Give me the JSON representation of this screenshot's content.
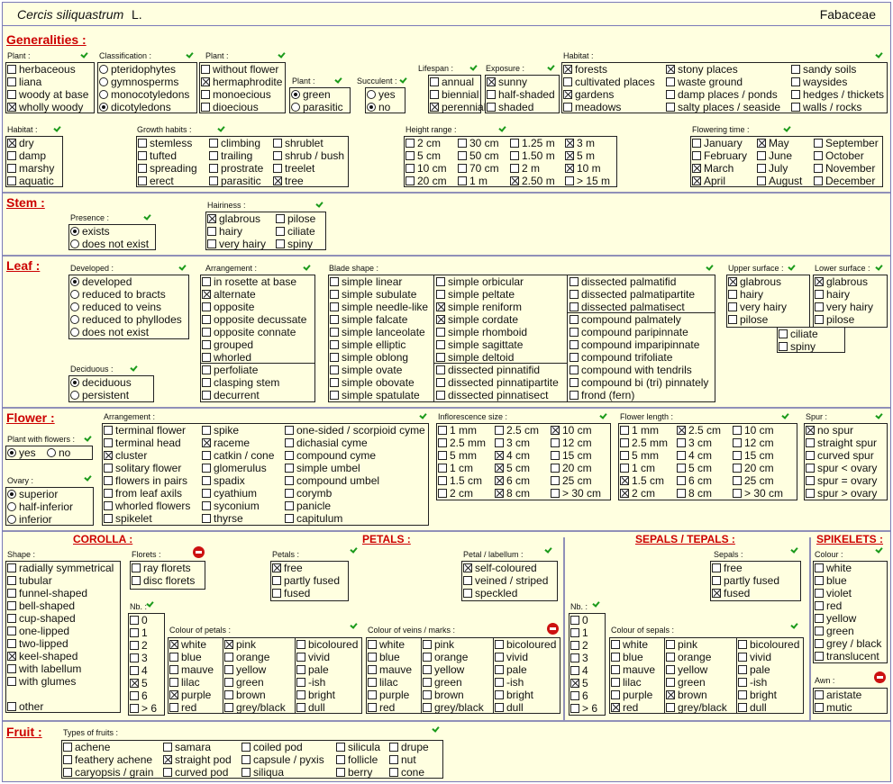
{
  "header": {
    "species": "Cercis siliquastrum",
    "author": "L.",
    "family": "Fabaceae"
  },
  "sections": {
    "generalities": "Generalities :",
    "stem": "Stem :",
    "leaf": "Leaf :",
    "flower": "Flower :",
    "fruit": "Fruit :",
    "corolla": "COROLLA :",
    "petals": "PETALS :",
    "sepals": "SEPALS / TEPALS :",
    "spikelets": "SPIKELETS :"
  },
  "labels": {
    "plant1": "Plant :",
    "classification": "Classification :",
    "plant2": "Plant :",
    "plant3": "Plant :",
    "succulent": "Succulent :",
    "lifespan": "Lifespan :",
    "exposure": "Exposure :",
    "habitat1": "Habitat :",
    "habitat2": "Habitat :",
    "growth": "Growth habits :",
    "height": "Height range :",
    "flowering": "Flowering time :",
    "presence": "Presence :",
    "hairiness": "Hairiness :",
    "developed": "Developed :",
    "arrangement": "Arrangement :",
    "blade": "Blade shape :",
    "upper": "Upper surface :",
    "lower": "Lower surface :",
    "deciduous": "Deciduous :",
    "with_flowers": "Plant with flowers :",
    "f_arr": "Arrangement :",
    "inflo": "Inflorescence size :",
    "flen": "Flower length :",
    "spur": "Spur :",
    "ovary": "Ovary :",
    "shape": "Shape :",
    "florets": "Florets :",
    "petals": "Petals :",
    "petal_lab": "Petal / labellum :",
    "nb1": "Nb. :",
    "col_petals": "Colour of petals :",
    "col_veins": "Colour of veins / marks :",
    "sepals": "Sepals :",
    "nb2": "Nb. :",
    "col_sepals": "Colour of sepals :",
    "colour": "Colour :",
    "awn": "Awn :",
    "fruit_types": "Types of fruits :"
  },
  "groups": {
    "plant1": [
      [
        "herbaceous",
        0
      ],
      [
        "liana",
        0
      ],
      [
        "woody at base",
        0
      ],
      [
        "wholly woody",
        1
      ]
    ],
    "classification": [
      [
        "pteridophytes",
        0
      ],
      [
        "gymnosperms",
        0
      ],
      [
        "monocotyledons",
        0
      ],
      [
        "dicotyledons",
        1
      ]
    ],
    "plant2": [
      [
        "without flower",
        0
      ],
      [
        "hermaphrodite",
        1
      ],
      [
        "monoecious",
        0
      ],
      [
        "dioecious",
        0
      ]
    ],
    "plant3": [
      [
        "green",
        1
      ],
      [
        "parasitic",
        0
      ]
    ],
    "succulent": [
      [
        "yes",
        0
      ],
      [
        "no",
        1
      ]
    ],
    "lifespan": [
      [
        "annual",
        0
      ],
      [
        "biennial",
        0
      ],
      [
        "perennial",
        1
      ]
    ],
    "exposure": [
      [
        "sunny",
        1
      ],
      [
        "half-shaded",
        0
      ],
      [
        "shaded",
        0
      ]
    ],
    "habitat1a": [
      [
        "forests",
        1
      ],
      [
        "cultivated places",
        0
      ],
      [
        "gardens",
        1
      ],
      [
        "meadows",
        0
      ]
    ],
    "habitat1b": [
      [
        "stony places",
        1
      ],
      [
        "waste ground",
        0
      ],
      [
        "damp places / ponds",
        0
      ],
      [
        "salty places / seaside",
        0
      ]
    ],
    "habitat1c": [
      [
        "sandy soils",
        0
      ],
      [
        "waysides",
        0
      ],
      [
        "hedges / thickets",
        0
      ],
      [
        "walls / rocks",
        0
      ]
    ],
    "habitat2": [
      [
        "dry",
        1
      ],
      [
        "damp",
        0
      ],
      [
        "marshy",
        0
      ],
      [
        "aquatic",
        0
      ]
    ],
    "growth_a": [
      [
        "stemless",
        0
      ],
      [
        "tufted",
        0
      ],
      [
        "spreading",
        0
      ],
      [
        "erect",
        0
      ]
    ],
    "growth_b": [
      [
        "climbing",
        0
      ],
      [
        "trailing",
        0
      ],
      [
        "prostrate",
        0
      ],
      [
        "parasitic",
        0
      ]
    ],
    "growth_c": [
      [
        "shrublet",
        0
      ],
      [
        "shrub / bush",
        0
      ],
      [
        "treelet",
        0
      ],
      [
        "tree",
        1
      ]
    ],
    "height_a": [
      [
        "2 cm",
        0
      ],
      [
        "5 cm",
        0
      ],
      [
        "10 cm",
        0
      ],
      [
        "20 cm",
        0
      ]
    ],
    "height_b": [
      [
        "30 cm",
        0
      ],
      [
        "50 cm",
        0
      ],
      [
        "70 cm",
        0
      ],
      [
        "1 m",
        0
      ]
    ],
    "height_c": [
      [
        "1.25 m",
        0
      ],
      [
        "1.50 m",
        0
      ],
      [
        "2 m",
        0
      ],
      [
        "2.50 m",
        1
      ]
    ],
    "height_d": [
      [
        "3 m",
        1
      ],
      [
        "5 m",
        1
      ],
      [
        "10 m",
        1
      ],
      [
        "> 15 m",
        0
      ]
    ],
    "month_a": [
      [
        "January",
        0
      ],
      [
        "February",
        0
      ],
      [
        "March",
        1
      ],
      [
        "April",
        1
      ]
    ],
    "month_b": [
      [
        "May",
        1
      ],
      [
        "June",
        0
      ],
      [
        "July",
        0
      ],
      [
        "August",
        0
      ]
    ],
    "month_c": [
      [
        "September",
        0
      ],
      [
        "October",
        0
      ],
      [
        "November",
        0
      ],
      [
        "December",
        0
      ]
    ],
    "presence": [
      [
        "exists",
        1
      ],
      [
        "does not exist",
        0
      ]
    ],
    "hair_a": [
      [
        "glabrous",
        1
      ],
      [
        "hairy",
        0
      ],
      [
        "very hairy",
        0
      ]
    ],
    "hair_b": [
      [
        "pilose",
        0
      ],
      [
        "ciliate",
        0
      ],
      [
        "spiny",
        0
      ]
    ],
    "developed": [
      [
        "developed",
        1
      ],
      [
        "reduced to bracts",
        0
      ],
      [
        "reduced to veins",
        0
      ],
      [
        "reduced to phyllodes",
        0
      ],
      [
        "does not exist",
        0
      ]
    ],
    "deciduous": [
      [
        "deciduous",
        1
      ],
      [
        "persistent",
        0
      ]
    ],
    "arr_a": [
      [
        "in rosette at base",
        0
      ],
      [
        "alternate",
        1
      ],
      [
        "opposite",
        0
      ],
      [
        "opposite decussate",
        0
      ],
      [
        "opposite connate",
        0
      ],
      [
        "grouped",
        0
      ],
      [
        "whorled",
        0
      ]
    ],
    "arr_b": [
      [
        "perfoliate",
        0
      ],
      [
        "clasping stem",
        0
      ],
      [
        "decurrent",
        0
      ]
    ],
    "blade_a": [
      [
        "simple linear",
        0
      ],
      [
        "simple subulate",
        0
      ],
      [
        "simple needle-like",
        0
      ],
      [
        "simple falcate",
        0
      ],
      [
        "simple lanceolate",
        0
      ],
      [
        "simple elliptic",
        0
      ],
      [
        "simple oblong",
        0
      ],
      [
        "simple ovate",
        0
      ],
      [
        "simple obovate",
        0
      ],
      [
        "simple spatulate",
        0
      ]
    ],
    "blade_b": [
      [
        "simple orbicular",
        0
      ],
      [
        "simple peltate",
        0
      ],
      [
        "simple reniform",
        1
      ],
      [
        "simple cordate",
        1
      ],
      [
        "simple rhomboid",
        0
      ],
      [
        "simple sagittate",
        0
      ],
      [
        "simple deltoid",
        0
      ]
    ],
    "blade_b2": [
      [
        "dissected pinnatifid",
        0
      ],
      [
        "dissected pinnatipartite",
        0
      ],
      [
        "dissected pinnatisect",
        0
      ]
    ],
    "blade_c": [
      [
        "dissected palmatifid",
        0
      ],
      [
        "dissected palmatipartite",
        0
      ],
      [
        "dissected palmatisect",
        0
      ]
    ],
    "blade_c2": [
      [
        "compound palmately",
        0
      ],
      [
        "compound paripinnate",
        0
      ],
      [
        "compound imparipinnate",
        0
      ],
      [
        "compound trifoliate",
        0
      ],
      [
        "compound with tendrils",
        0
      ],
      [
        "compound bi (tri) pinnately",
        0
      ],
      [
        "frond  (fern)",
        0
      ]
    ],
    "upper": [
      [
        "glabrous",
        1
      ],
      [
        "hairy",
        0
      ],
      [
        "very hairy",
        0
      ],
      [
        "pilose",
        0
      ]
    ],
    "lower": [
      [
        "glabrous",
        1
      ],
      [
        "hairy",
        0
      ],
      [
        "very hairy",
        0
      ],
      [
        "pilose",
        0
      ]
    ],
    "surf_extra": [
      [
        "ciliate",
        0
      ],
      [
        "spiny",
        0
      ]
    ],
    "with_flowers": [
      [
        "yes",
        1
      ],
      [
        "no",
        0
      ]
    ],
    "ovary": [
      [
        "superior",
        1
      ],
      [
        "half-inferior",
        0
      ],
      [
        "inferior",
        0
      ]
    ],
    "farr_a": [
      [
        "terminal flower",
        0
      ],
      [
        "terminal head",
        0
      ],
      [
        "cluster",
        1
      ],
      [
        "solitary flower",
        0
      ],
      [
        "flowers in pairs",
        0
      ],
      [
        "from leaf axils",
        0
      ],
      [
        "whorled flowers",
        0
      ],
      [
        "spikelet",
        0
      ]
    ],
    "farr_b": [
      [
        "spike",
        0
      ],
      [
        "raceme",
        1
      ],
      [
        "catkin / cone",
        0
      ],
      [
        "glomerulus",
        0
      ],
      [
        "spadix",
        0
      ],
      [
        "cyathium",
        0
      ],
      [
        "syconium",
        0
      ],
      [
        "thyrse",
        0
      ]
    ],
    "farr_c": [
      [
        "one-sided / scorpioid cyme",
        0
      ],
      [
        "dichasial cyme",
        0
      ],
      [
        "compound cyme",
        0
      ],
      [
        "simple umbel",
        0
      ],
      [
        "compound umbel",
        0
      ],
      [
        "corymb",
        0
      ],
      [
        "panicle",
        0
      ],
      [
        "capitulum",
        0
      ]
    ],
    "inflo_a": [
      [
        "1 mm",
        0
      ],
      [
        "2.5 mm",
        0
      ],
      [
        "5 mm",
        0
      ],
      [
        "1 cm",
        0
      ],
      [
        "1.5 cm",
        0
      ],
      [
        "2 cm",
        0
      ]
    ],
    "inflo_b": [
      [
        "2.5 cm",
        0
      ],
      [
        "3 cm",
        0
      ],
      [
        "4 cm",
        1
      ],
      [
        "5 cm",
        1
      ],
      [
        "6 cm",
        1
      ],
      [
        "8 cm",
        1
      ]
    ],
    "inflo_c": [
      [
        "10 cm",
        1
      ],
      [
        "12 cm",
        0
      ],
      [
        "15 cm",
        0
      ],
      [
        "20 cm",
        0
      ],
      [
        "25 cm",
        0
      ],
      [
        "> 30 cm",
        0
      ]
    ],
    "flen_a": [
      [
        "1 mm",
        0
      ],
      [
        "2.5 mm",
        0
      ],
      [
        "5 mm",
        0
      ],
      [
        "1 cm",
        0
      ],
      [
        "1.5 cm",
        1
      ],
      [
        "2 cm",
        1
      ]
    ],
    "flen_b": [
      [
        "2.5 cm",
        1
      ],
      [
        "3 cm",
        0
      ],
      [
        "4 cm",
        0
      ],
      [
        "5 cm",
        0
      ],
      [
        "6 cm",
        0
      ],
      [
        "8 cm",
        0
      ]
    ],
    "flen_c": [
      [
        "10 cm",
        0
      ],
      [
        "12 cm",
        0
      ],
      [
        "15 cm",
        0
      ],
      [
        "20 cm",
        0
      ],
      [
        "25 cm",
        0
      ],
      [
        "> 30 cm",
        0
      ]
    ],
    "spur": [
      [
        "no spur",
        1
      ],
      [
        "straight spur",
        0
      ],
      [
        "curved spur",
        0
      ],
      [
        "spur < ovary",
        0
      ],
      [
        "spur = ovary",
        0
      ],
      [
        "spur > ovary",
        0
      ]
    ],
    "shape": [
      [
        "radially symmetrical",
        0
      ],
      [
        "tubular",
        0
      ],
      [
        "funnel-shaped",
        0
      ],
      [
        "bell-shaped",
        0
      ],
      [
        "cup-shaped",
        0
      ],
      [
        "one-lipped",
        0
      ],
      [
        "two-lipped",
        0
      ],
      [
        "keel-shaped",
        1
      ],
      [
        "with labellum",
        0
      ],
      [
        "with glumes",
        0
      ]
    ],
    "shape_other": [
      [
        "other",
        0
      ]
    ],
    "florets": [
      [
        "ray florets",
        0
      ],
      [
        "disc florets",
        0
      ]
    ],
    "petals": [
      [
        "free",
        1
      ],
      [
        "partly fused",
        0
      ],
      [
        "fused",
        0
      ]
    ],
    "petal_lab": [
      [
        "self-coloured",
        1
      ],
      [
        "veined / striped",
        0
      ],
      [
        "speckled",
        0
      ]
    ],
    "nb1": [
      [
        "0",
        0
      ],
      [
        "1",
        0
      ],
      [
        "2",
        0
      ],
      [
        "3",
        0
      ],
      [
        "4",
        0
      ],
      [
        "5",
        1
      ],
      [
        "6",
        0
      ],
      [
        "> 6",
        0
      ]
    ],
    "cp_a": [
      [
        "white",
        1
      ],
      [
        "blue",
        0
      ],
      [
        "mauve",
        0
      ],
      [
        "lilac",
        0
      ],
      [
        "purple",
        1
      ],
      [
        "red",
        0
      ]
    ],
    "cp_b": [
      [
        "pink",
        1
      ],
      [
        "orange",
        0
      ],
      [
        "yellow",
        0
      ],
      [
        "green",
        0
      ],
      [
        "brown",
        0
      ],
      [
        "grey/black",
        0
      ]
    ],
    "cp_c": [
      [
        "bicoloured",
        0
      ],
      [
        "vivid",
        0
      ],
      [
        "pale",
        0
      ],
      [
        "-ish",
        0
      ],
      [
        "bright",
        0
      ],
      [
        "dull",
        0
      ]
    ],
    "cv_a": [
      [
        "white",
        0
      ],
      [
        "blue",
        0
      ],
      [
        "mauve",
        0
      ],
      [
        "lilac",
        0
      ],
      [
        "purple",
        0
      ],
      [
        "red",
        0
      ]
    ],
    "cv_b": [
      [
        "pink",
        0
      ],
      [
        "orange",
        0
      ],
      [
        "yellow",
        0
      ],
      [
        "green",
        0
      ],
      [
        "brown",
        0
      ],
      [
        "grey/black",
        0
      ]
    ],
    "cv_c": [
      [
        "bicoloured",
        0
      ],
      [
        "vivid",
        0
      ],
      [
        "pale",
        0
      ],
      [
        "-ish",
        0
      ],
      [
        "bright",
        0
      ],
      [
        "dull",
        0
      ]
    ],
    "nb2": [
      [
        "0",
        0
      ],
      [
        "1",
        0
      ],
      [
        "2",
        0
      ],
      [
        "3",
        0
      ],
      [
        "4",
        0
      ],
      [
        "5",
        1
      ],
      [
        "6",
        0
      ],
      [
        "> 6",
        0
      ]
    ],
    "sepals": [
      [
        "free",
        0
      ],
      [
        "partly fused",
        0
      ],
      [
        "fused",
        1
      ]
    ],
    "cs_a": [
      [
        "white",
        0
      ],
      [
        "blue",
        0
      ],
      [
        "mauve",
        0
      ],
      [
        "lilac",
        0
      ],
      [
        "purple",
        0
      ],
      [
        "red",
        1
      ]
    ],
    "cs_b": [
      [
        "pink",
        0
      ],
      [
        "orange",
        0
      ],
      [
        "yellow",
        0
      ],
      [
        "green",
        0
      ],
      [
        "brown",
        1
      ],
      [
        "grey/black",
        0
      ]
    ],
    "cs_c": [
      [
        "bicoloured",
        0
      ],
      [
        "vivid",
        0
      ],
      [
        "pale",
        0
      ],
      [
        "-ish",
        0
      ],
      [
        "bright",
        0
      ],
      [
        "dull",
        0
      ]
    ],
    "colour": [
      [
        "white",
        0
      ],
      [
        "blue",
        0
      ],
      [
        "violet",
        0
      ],
      [
        "red",
        0
      ],
      [
        "yellow",
        0
      ],
      [
        "green",
        0
      ],
      [
        "grey / black",
        0
      ],
      [
        "translucent",
        0
      ]
    ],
    "awn": [
      [
        "aristate",
        0
      ],
      [
        "mutic",
        0
      ]
    ],
    "fruit_a": [
      [
        "achene",
        0
      ],
      [
        "feathery achene",
        0
      ],
      [
        "caryopsis / grain",
        0
      ]
    ],
    "fruit_b": [
      [
        "samara",
        0
      ],
      [
        "straight pod",
        1
      ],
      [
        "curved pod",
        0
      ]
    ],
    "fruit_c": [
      [
        "coiled pod",
        0
      ],
      [
        "capsule / pyxis",
        0
      ],
      [
        "siliqua",
        0
      ]
    ],
    "fruit_d": [
      [
        "silicula",
        0
      ],
      [
        "follicle",
        0
      ],
      [
        "berry",
        0
      ]
    ],
    "fruit_e": [
      [
        "drupe",
        0
      ],
      [
        "nut",
        0
      ],
      [
        "cone",
        0
      ]
    ]
  }
}
